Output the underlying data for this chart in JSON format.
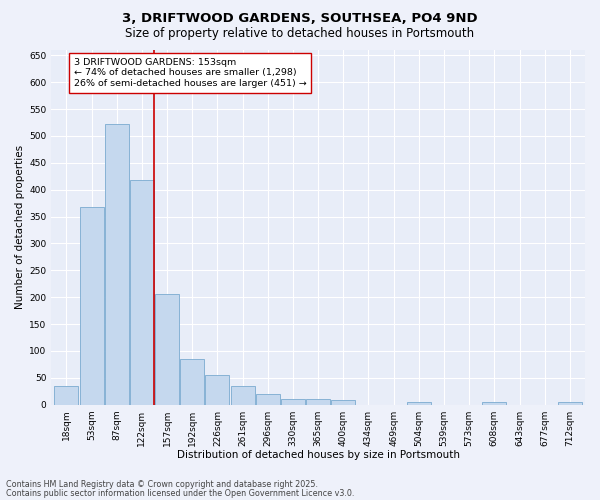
{
  "title1": "3, DRIFTWOOD GARDENS, SOUTHSEA, PO4 9ND",
  "title2": "Size of property relative to detached houses in Portsmouth",
  "xlabel": "Distribution of detached houses by size in Portsmouth",
  "ylabel": "Number of detached properties",
  "categories": [
    "18sqm",
    "53sqm",
    "87sqm",
    "122sqm",
    "157sqm",
    "192sqm",
    "226sqm",
    "261sqm",
    "296sqm",
    "330sqm",
    "365sqm",
    "400sqm",
    "434sqm",
    "469sqm",
    "504sqm",
    "539sqm",
    "573sqm",
    "608sqm",
    "643sqm",
    "677sqm",
    "712sqm"
  ],
  "values": [
    35,
    368,
    522,
    418,
    205,
    84,
    55,
    35,
    20,
    10,
    10,
    9,
    0,
    0,
    5,
    0,
    0,
    4,
    0,
    0,
    5
  ],
  "bar_color": "#c5d8ee",
  "bar_edge_color": "#7aaad0",
  "vline_color": "#cc0000",
  "annotation_text": "3 DRIFTWOOD GARDENS: 153sqm\n← 74% of detached houses are smaller (1,298)\n26% of semi-detached houses are larger (451) →",
  "annotation_box_color": "#ffffff",
  "annotation_box_edge": "#cc0000",
  "ylim": [
    0,
    660
  ],
  "yticks": [
    0,
    50,
    100,
    150,
    200,
    250,
    300,
    350,
    400,
    450,
    500,
    550,
    600,
    650
  ],
  "background_color": "#eef1fa",
  "plot_bg_color": "#e8edf8",
  "grid_color": "#ffffff",
  "footer1": "Contains HM Land Registry data © Crown copyright and database right 2025.",
  "footer2": "Contains public sector information licensed under the Open Government Licence v3.0.",
  "title1_fontsize": 9.5,
  "title2_fontsize": 8.5,
  "axis_label_fontsize": 7.5,
  "tick_fontsize": 6.5,
  "annotation_fontsize": 6.8,
  "footer_fontsize": 5.8
}
